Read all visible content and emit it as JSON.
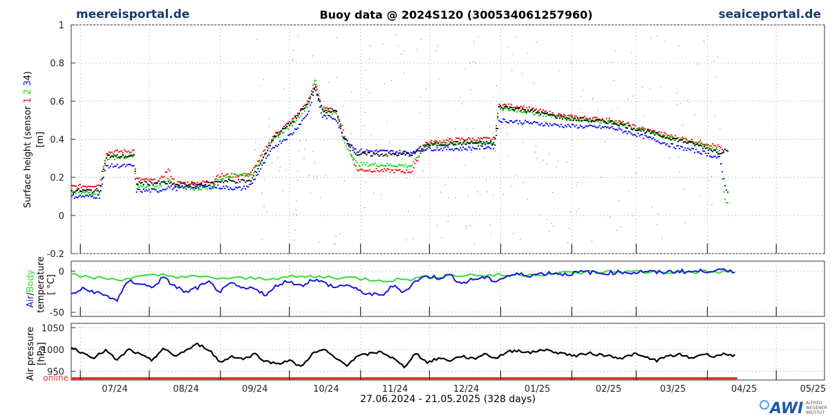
{
  "header": {
    "left_brand": "meereisportal.de",
    "title": "Buoy data @ 2024S120   (300534061257960)",
    "right_brand": "seaiceportal.de"
  },
  "footer": {
    "date_range": "27.06.2024 - 21.05.2025 (328 days)",
    "logo_text": "AWI",
    "institute_lines": [
      "ALFRED",
      "WEGENER",
      "INSTITUT"
    ]
  },
  "colors": {
    "brand": "#1a3a6e",
    "sensor1": "#ff0000",
    "sensor2": "#00dd00",
    "sensor3": "#0000ff",
    "sensor4": "#000000",
    "body_temp": "#33dd33",
    "air_temp": "#1515e0",
    "pressure": "#000000",
    "online_bar": "#e83030",
    "outlier": "#888888"
  },
  "chart_data": [
    {
      "type": "scatter",
      "id": "surface",
      "ylabel_parts": [
        {
          "text": "Surface height (sensor ",
          "color": "#000000"
        },
        {
          "text": "1 ",
          "color": "#ff0000"
        },
        {
          "text": "2 ",
          "color": "#00dd00"
        },
        {
          "text": "3",
          "color": "#0000ff"
        },
        {
          "text": "4)",
          "color": "#000000"
        }
      ],
      "ylabel_unit": "[m]",
      "ylim": [
        -0.2,
        1.0
      ],
      "yticks": [
        -0.2,
        0,
        0.2,
        0.4,
        0.6,
        0.8,
        1
      ],
      "ytick_labels": [
        "-0.2",
        "0",
        "0.2",
        "0.4",
        "0.6",
        "0.8",
        "1"
      ],
      "grid": true,
      "x_day_range": [
        0,
        328
      ],
      "series": [
        {
          "sensor": 1,
          "color": "#ff0000",
          "points": [
            [
              0,
              0.15
            ],
            [
              12,
              0.16
            ],
            [
              15,
              0.33
            ],
            [
              27,
              0.34
            ],
            [
              28,
              0.19
            ],
            [
              38,
              0.18
            ],
            [
              42,
              0.24
            ],
            [
              45,
              0.17
            ],
            [
              54,
              0.17
            ],
            [
              62,
              0.18
            ],
            [
              63,
              0.21
            ],
            [
              74,
              0.21
            ],
            [
              78,
              0.22
            ],
            [
              88,
              0.42
            ],
            [
              96,
              0.5
            ],
            [
              103,
              0.6
            ],
            [
              106,
              0.7
            ],
            [
              109,
              0.56
            ],
            [
              115,
              0.55
            ],
            [
              118,
              0.45
            ],
            [
              124,
              0.24
            ],
            [
              148,
              0.23
            ],
            [
              154,
              0.38
            ],
            [
              170,
              0.4
            ],
            [
              184,
              0.4
            ],
            [
              186,
              0.58
            ],
            [
              195,
              0.57
            ],
            [
              215,
              0.52
            ],
            [
              235,
              0.5
            ],
            [
              253,
              0.44
            ],
            [
              263,
              0.41
            ],
            [
              275,
              0.38
            ],
            [
              282,
              0.36
            ],
            [
              284,
              0.33
            ]
          ]
        },
        {
          "sensor": 2,
          "color": "#00dd00",
          "points": [
            [
              0,
              0.12
            ],
            [
              12,
              0.12
            ],
            [
              15,
              0.3
            ],
            [
              27,
              0.31
            ],
            [
              28,
              0.15
            ],
            [
              38,
              0.15
            ],
            [
              42,
              0.2
            ],
            [
              45,
              0.15
            ],
            [
              54,
              0.14
            ],
            [
              62,
              0.15
            ],
            [
              63,
              0.19
            ],
            [
              74,
              0.22
            ],
            [
              78,
              0.21
            ],
            [
              88,
              0.4
            ],
            [
              96,
              0.48
            ],
            [
              103,
              0.58
            ],
            [
              106,
              0.72
            ],
            [
              109,
              0.55
            ],
            [
              115,
              0.54
            ],
            [
              118,
              0.4
            ],
            [
              124,
              0.27
            ],
            [
              148,
              0.26
            ],
            [
              154,
              0.37
            ],
            [
              170,
              0.38
            ],
            [
              184,
              0.38
            ],
            [
              186,
              0.56
            ],
            [
              195,
              0.55
            ],
            [
              215,
              0.51
            ],
            [
              235,
              0.49
            ],
            [
              253,
              0.43
            ],
            [
              263,
              0.4
            ],
            [
              275,
              0.37
            ],
            [
              282,
              0.34
            ],
            [
              284,
              0.1
            ],
            [
              286,
              0.05
            ]
          ]
        },
        {
          "sensor": 3,
          "color": "#0000ff",
          "points": [
            [
              0,
              0.1
            ],
            [
              12,
              0.1
            ],
            [
              15,
              0.26
            ],
            [
              27,
              0.26
            ],
            [
              28,
              0.13
            ],
            [
              38,
              0.13
            ],
            [
              42,
              0.15
            ],
            [
              45,
              0.14
            ],
            [
              54,
              0.15
            ],
            [
              62,
              0.15
            ],
            [
              63,
              0.15
            ],
            [
              74,
              0.14
            ],
            [
              78,
              0.16
            ],
            [
              88,
              0.36
            ],
            [
              96,
              0.43
            ],
            [
              103,
              0.54
            ],
            [
              106,
              0.67
            ],
            [
              109,
              0.52
            ],
            [
              115,
              0.51
            ],
            [
              118,
              0.42
            ],
            [
              124,
              0.34
            ],
            [
              148,
              0.33
            ],
            [
              154,
              0.35
            ],
            [
              170,
              0.35
            ],
            [
              184,
              0.36
            ],
            [
              186,
              0.5
            ],
            [
              195,
              0.49
            ],
            [
              215,
              0.47
            ],
            [
              235,
              0.46
            ],
            [
              253,
              0.4
            ],
            [
              263,
              0.36
            ],
            [
              275,
              0.33
            ],
            [
              282,
              0.3
            ],
            [
              284,
              0.18
            ],
            [
              286,
              0.1
            ]
          ]
        },
        {
          "sensor": 4,
          "color": "#000000",
          "points": [
            [
              0,
              0.13
            ],
            [
              12,
              0.13
            ],
            [
              15,
              0.31
            ],
            [
              27,
              0.31
            ],
            [
              28,
              0.17
            ],
            [
              38,
              0.17
            ],
            [
              42,
              0.17
            ],
            [
              45,
              0.16
            ],
            [
              54,
              0.16
            ],
            [
              62,
              0.17
            ],
            [
              63,
              0.18
            ],
            [
              74,
              0.18
            ],
            [
              78,
              0.18
            ],
            [
              88,
              0.41
            ],
            [
              96,
              0.49
            ],
            [
              103,
              0.59
            ],
            [
              106,
              0.68
            ],
            [
              109,
              0.55
            ],
            [
              115,
              0.55
            ],
            [
              118,
              0.42
            ],
            [
              124,
              0.32
            ],
            [
              148,
              0.32
            ],
            [
              154,
              0.37
            ],
            [
              170,
              0.38
            ],
            [
              184,
              0.38
            ],
            [
              186,
              0.57
            ],
            [
              195,
              0.56
            ],
            [
              215,
              0.51
            ],
            [
              235,
              0.49
            ],
            [
              253,
              0.43
            ],
            [
              263,
              0.4
            ],
            [
              275,
              0.36
            ],
            [
              282,
              0.33
            ],
            [
              286,
              0.35
            ]
          ]
        }
      ]
    },
    {
      "type": "line",
      "id": "temperature",
      "ylabel_parts": [
        {
          "text": "Air",
          "color": "#1515e0"
        },
        {
          "text": "/",
          "color": "#000000"
        },
        {
          "text": "Body",
          "color": "#33dd33"
        }
      ],
      "ylabel_line2": "temperature",
      "ylabel_unit": "[ °C]",
      "ylim": [
        -55,
        12
      ],
      "yticks": [
        -50,
        0
      ],
      "ytick_labels": [
        "-50",
        "0"
      ],
      "grid": true,
      "x_day_range": [
        0,
        328
      ],
      "series": [
        {
          "name": "Body",
          "color": "#33dd33",
          "x": [
            0,
            10,
            20,
            30,
            40,
            50,
            60,
            70,
            80,
            90,
            100,
            110,
            120,
            130,
            140,
            150,
            160,
            170,
            180,
            190,
            200,
            210,
            220,
            230,
            240,
            250,
            260,
            270,
            280,
            290
          ],
          "values": [
            -5,
            -8,
            -10,
            -7,
            -5,
            -7,
            -8,
            -9,
            -9,
            -8,
            -7,
            -7,
            -8,
            -10,
            -11,
            -9,
            -6,
            -5,
            -5,
            -5,
            -4,
            -3,
            -2,
            -1,
            -1,
            -1,
            -1,
            -1,
            -1,
            -1
          ]
        },
        {
          "name": "Air",
          "color": "#1515e0",
          "x": [
            0,
            5,
            10,
            15,
            20,
            25,
            30,
            35,
            40,
            45,
            50,
            55,
            60,
            65,
            70,
            75,
            80,
            85,
            90,
            95,
            100,
            105,
            110,
            115,
            120,
            125,
            130,
            135,
            140,
            145,
            150,
            155,
            160,
            165,
            170,
            175,
            180,
            185,
            190,
            195,
            200,
            205,
            210,
            215,
            220,
            225,
            230,
            235,
            240,
            245,
            250,
            255,
            260,
            265,
            270,
            275,
            280,
            285,
            290
          ],
          "values": [
            -28,
            -22,
            -25,
            -30,
            -35,
            -12,
            -15,
            -20,
            -8,
            -18,
            -26,
            -20,
            -14,
            -25,
            -15,
            -22,
            -20,
            -30,
            -16,
            -12,
            -18,
            -10,
            -14,
            -20,
            -16,
            -24,
            -28,
            -30,
            -18,
            -25,
            -12,
            -6,
            -8,
            -5,
            -15,
            -10,
            -8,
            -12,
            -6,
            -4,
            -5,
            -3,
            -2,
            -4,
            -2,
            -1,
            -3,
            -2,
            -1,
            -2,
            0,
            -2,
            -1,
            0,
            -1,
            0,
            1,
            0,
            0
          ]
        }
      ]
    },
    {
      "type": "line",
      "id": "pressure",
      "ylabel": "Air pressure",
      "ylabel_unit": "[hPa]",
      "ylim": [
        930,
        1060
      ],
      "yticks": [
        950,
        1000,
        1050
      ],
      "ytick_labels": [
        "950",
        "1000",
        "1050"
      ],
      "grid": true,
      "x_day_range": [
        0,
        328
      ],
      "series": [
        {
          "name": "Air pressure",
          "color": "#000000",
          "x": [
            0,
            5,
            10,
            15,
            20,
            25,
            30,
            35,
            40,
            45,
            50,
            55,
            60,
            65,
            70,
            75,
            80,
            85,
            90,
            95,
            100,
            105,
            110,
            115,
            120,
            125,
            130,
            135,
            140,
            145,
            150,
            155,
            160,
            165,
            170,
            175,
            180,
            185,
            190,
            195,
            200,
            205,
            210,
            215,
            220,
            225,
            230,
            235,
            240,
            245,
            250,
            255,
            260,
            265,
            270,
            275,
            280,
            285,
            290
          ],
          "values": [
            1005,
            992,
            982,
            998,
            975,
            1000,
            988,
            975,
            1002,
            985,
            998,
            1012,
            1000,
            970,
            985,
            978,
            990,
            972,
            968,
            975,
            960,
            990,
            1000,
            980,
            965,
            985,
            990,
            995,
            980,
            960,
            992,
            970,
            980,
            975,
            985,
            978,
            990,
            980,
            995,
            998,
            992,
            1000,
            995,
            990,
            985,
            992,
            988,
            985,
            980,
            990,
            982,
            975,
            985,
            988,
            980,
            990,
            985,
            990,
            985
          ]
        }
      ]
    }
  ],
  "status_bar": {
    "label": "online",
    "online_until_day": 290
  },
  "x_axis": {
    "tick_labels": [
      "07/24",
      "08/24",
      "09/24",
      "10/24",
      "11/24",
      "12/24",
      "01/25",
      "02/25",
      "03/25",
      "04/25",
      "05/25"
    ],
    "label_days": [
      19,
      50,
      80,
      111,
      141,
      172,
      203,
      234,
      262,
      293,
      323
    ],
    "minor_tick_days": [
      4,
      34,
      65,
      95,
      126,
      156,
      187,
      218,
      246,
      277,
      307
    ]
  }
}
